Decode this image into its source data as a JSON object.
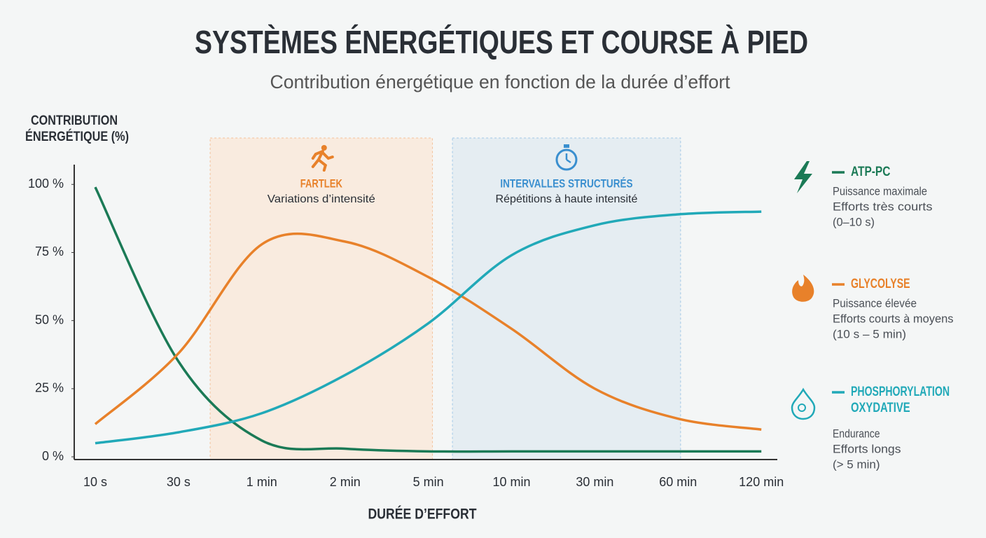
{
  "chart_data": {
    "type": "line",
    "title": "SYSTÈMES ÉNERGÉTIQUES ET COURSE À PIED",
    "subtitle": "Contribution énergétique en fonction de la durée d’effort",
    "y_label": [
      "CONTRIBUTION",
      "ÉNERGÉTIQUE (%)"
    ],
    "x_label": "DURÉE D’EFFORT",
    "categories": [
      "10 s",
      "30 s",
      "1 min",
      "2 min",
      "5 min",
      "10 min",
      "30 min",
      "60 min",
      "120 min"
    ],
    "ylim": [
      -1,
      107
    ],
    "yticks": [
      {
        "value": 0,
        "label": "0 %"
      },
      {
        "value": 25,
        "label": "25 %"
      },
      {
        "value": 50,
        "label": "50 %"
      },
      {
        "value": 75,
        "label": "75 %"
      },
      {
        "value": 100,
        "label": "100 %"
      }
    ],
    "series": [
      {
        "name": "ATP-PC",
        "color": "#1b7a56",
        "description": [
          "Puissance maximale",
          "Efforts très courts",
          "(0–10 s)"
        ],
        "values": [
          99,
          35,
          6,
          3,
          2,
          2,
          2,
          2,
          2
        ]
      },
      {
        "name": "GLYCOLYSE",
        "color": "#e8812a",
        "description": [
          "Puissance élevée",
          "Efforts courts à moyens",
          "(10 s – 5 min)"
        ],
        "values": [
          12,
          38,
          78,
          79,
          66,
          47,
          25,
          14,
          10
        ]
      },
      {
        "name": "PHOSPHORYLATION OXYDATIVE",
        "color": "#21a9b8",
        "description": [
          "Endurance",
          "Efforts longs",
          "(> 5 min)"
        ],
        "values": [
          5,
          9,
          16,
          30,
          49,
          74,
          85,
          89,
          90
        ]
      }
    ],
    "zones": [
      {
        "title": "FARTLEK",
        "subtitle": "Variations d’intensité",
        "color": "#e8812a"
      },
      {
        "title": "INTERVALLES STRUCTURÉS",
        "subtitle": "Répétitions à haute intensité",
        "color": "#3a8fcf"
      }
    ]
  }
}
